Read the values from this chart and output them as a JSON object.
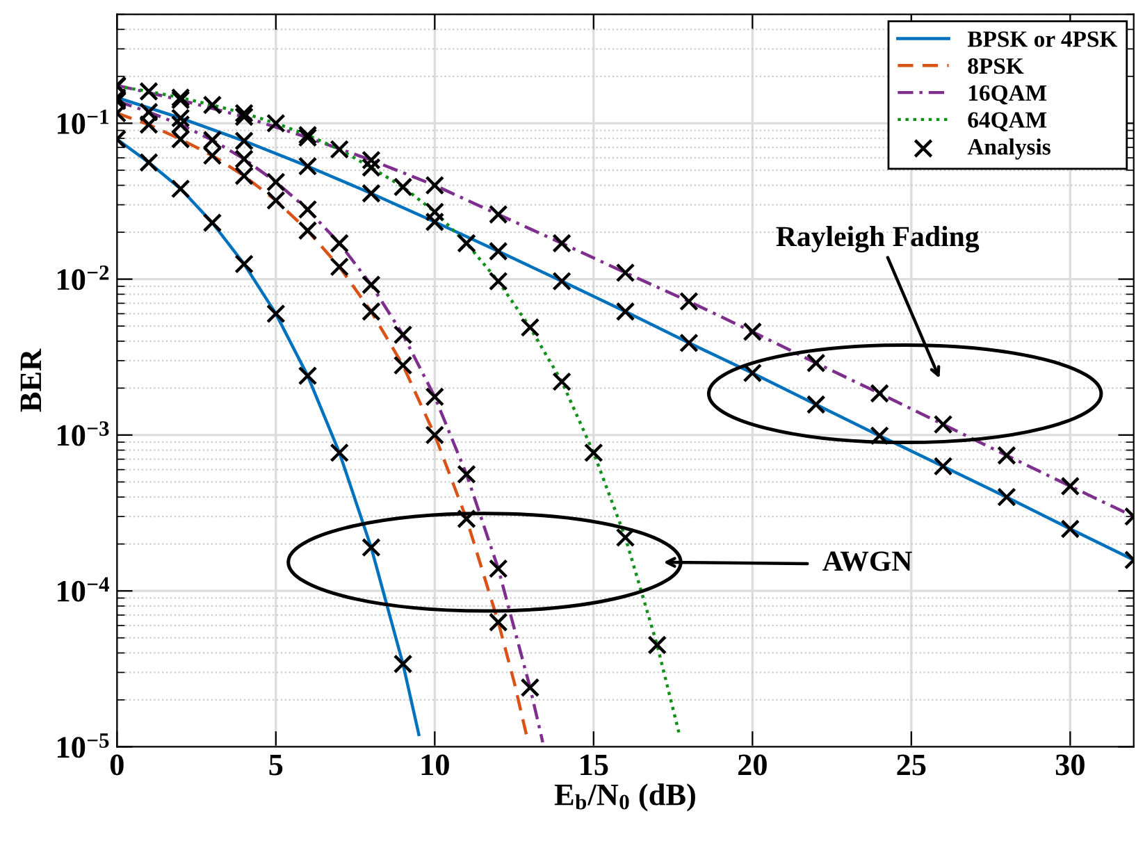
{
  "chart_data": {
    "type": "line",
    "xlabel": "E$_{b}$/N$_{0}$ (dB)",
    "ylabel": "BER",
    "log": "y",
    "xlim": [
      0,
      32
    ],
    "xticks": [
      0,
      5,
      10,
      15,
      20,
      25,
      30
    ],
    "ylim": [
      1e-05,
      0.5
    ],
    "yticks": [
      {
        "value": 0.1,
        "label": "10$^{−1}$"
      },
      {
        "value": 0.01,
        "label": "10$^{−2}$"
      },
      {
        "value": 0.001,
        "label": "10$^{−3}$"
      },
      {
        "value": 0.0001,
        "label": "10$^{−4}$"
      },
      {
        "value": 1e-05,
        "label": "10$^{−5}$"
      }
    ],
    "grid": true,
    "legend": "top right",
    "annotations": [
      "Rayleigh Fading",
      "AWGN"
    ],
    "series": [
      {
        "name": "BPSK or 4PSK",
        "line_style": "solid",
        "color": "#0072bd",
        "x": [
          0,
          1,
          2,
          3,
          4,
          5,
          6,
          7,
          8,
          9,
          9.5
        ],
        "values": [
          0.079,
          0.056,
          0.038,
          0.023,
          0.0125,
          0.006,
          0.0024,
          0.00077,
          0.00019,
          3.4e-05,
          1.2e-05
        ]
      },
      {
        "line_style": "solid",
        "color": "#0072bd",
        "x": [
          0,
          2,
          4,
          6,
          8,
          10,
          12,
          14,
          16,
          18,
          20,
          22,
          24,
          26,
          28,
          30,
          32
        ],
        "values": [
          0.146,
          0.108,
          0.077,
          0.053,
          0.0355,
          0.0233,
          0.0151,
          0.0097,
          0.0062,
          0.0039,
          0.0025,
          0.00157,
          0.00099,
          0.00063,
          0.0004,
          0.00025,
          0.000158
        ]
      },
      {
        "name": "8PSK",
        "line_style": "dashed",
        "color": "#d95319",
        "x": [
          0,
          1,
          2,
          3,
          4,
          5,
          6,
          7,
          8,
          9,
          10,
          11,
          12,
          12.5,
          12.9
        ],
        "values": [
          0.116,
          0.098,
          0.079,
          0.062,
          0.046,
          0.032,
          0.0205,
          0.012,
          0.0062,
          0.0028,
          0.001,
          0.00029,
          6.3e-05,
          2.6e-05,
          1.16e-05
        ]
      },
      {
        "name": "16QAM",
        "line_style": "dashdot",
        "color": "#7e2f8e",
        "x": [
          0,
          1,
          2,
          3,
          4,
          5,
          6,
          7,
          8,
          9,
          10,
          11,
          12,
          13,
          13.4
        ],
        "values": [
          0.139,
          0.118,
          0.098,
          0.078,
          0.059,
          0.042,
          0.028,
          0.017,
          0.0092,
          0.0044,
          0.00176,
          0.00056,
          0.000139,
          2.4e-05,
          1.07e-05
        ]
      },
      {
        "line_style": "dashdot",
        "color": "#7e2f8e",
        "x": [
          0,
          2,
          4,
          6,
          8,
          10,
          12,
          14,
          16,
          18,
          20,
          22,
          24,
          26,
          28,
          30,
          32
        ],
        "values": [
          0.175,
          0.141,
          0.11,
          0.081,
          0.058,
          0.04,
          0.026,
          0.017,
          0.011,
          0.0072,
          0.0046,
          0.0029,
          0.00185,
          0.00117,
          0.00074,
          0.00047,
          0.0003
        ]
      },
      {
        "name": "64QAM",
        "line_style": "dotted",
        "color": "#11901a",
        "x": [
          0,
          1,
          2,
          3,
          4,
          5,
          6,
          7,
          8,
          9,
          10,
          11,
          12,
          13,
          14,
          15,
          16,
          17,
          17.7
        ],
        "values": [
          0.173,
          0.16,
          0.146,
          0.131,
          0.116,
          0.1,
          0.084,
          0.068,
          0.052,
          0.039,
          0.027,
          0.017,
          0.0097,
          0.0049,
          0.0022,
          0.00077,
          0.00022,
          4.5e-05,
          1.2e-05
        ]
      },
      {
        "name": "Analysis",
        "type": "scatter",
        "marker": "cross",
        "color": "#000000",
        "x": [
          0,
          1,
          2,
          3,
          4,
          5,
          6,
          7,
          8,
          9,
          0,
          2,
          4,
          6,
          8,
          10,
          12,
          14,
          16,
          18,
          20,
          22,
          24,
          26,
          28,
          30,
          32,
          0,
          1,
          2,
          3,
          4,
          5,
          6,
          7,
          8,
          9,
          10,
          11,
          12,
          0,
          1,
          2,
          3,
          4,
          5,
          6,
          7,
          8,
          9,
          10,
          11,
          12,
          13,
          0,
          2,
          4,
          6,
          8,
          10,
          12,
          14,
          16,
          18,
          20,
          22,
          24,
          26,
          28,
          30,
          32,
          0,
          1,
          2,
          3,
          4,
          5,
          6,
          7,
          8,
          9,
          10,
          11,
          12,
          13,
          14,
          15,
          16,
          17
        ],
        "values": [
          0.079,
          0.056,
          0.038,
          0.023,
          0.0125,
          0.006,
          0.0024,
          0.00077,
          0.00019,
          3.4e-05,
          0.146,
          0.108,
          0.077,
          0.053,
          0.0355,
          0.0233,
          0.0151,
          0.0097,
          0.0062,
          0.0039,
          0.0025,
          0.00157,
          0.00099,
          0.00063,
          0.0004,
          0.00025,
          0.000158,
          0.116,
          0.098,
          0.079,
          0.062,
          0.046,
          0.032,
          0.0205,
          0.012,
          0.0062,
          0.0028,
          0.001,
          0.00029,
          6.3e-05,
          0.139,
          0.118,
          0.098,
          0.078,
          0.059,
          0.042,
          0.028,
          0.017,
          0.0092,
          0.0044,
          0.00176,
          0.00056,
          0.000139,
          2.4e-05,
          0.175,
          0.141,
          0.11,
          0.081,
          0.058,
          0.04,
          0.026,
          0.017,
          0.011,
          0.0072,
          0.0046,
          0.0029,
          0.00185,
          0.00117,
          0.00074,
          0.00047,
          0.0003,
          0.173,
          0.16,
          0.146,
          0.131,
          0.116,
          0.1,
          0.084,
          0.068,
          0.052,
          0.039,
          0.027,
          0.017,
          0.0097,
          0.0049,
          0.0022,
          0.00077,
          0.00022,
          4.5e-05
        ]
      }
    ]
  }
}
